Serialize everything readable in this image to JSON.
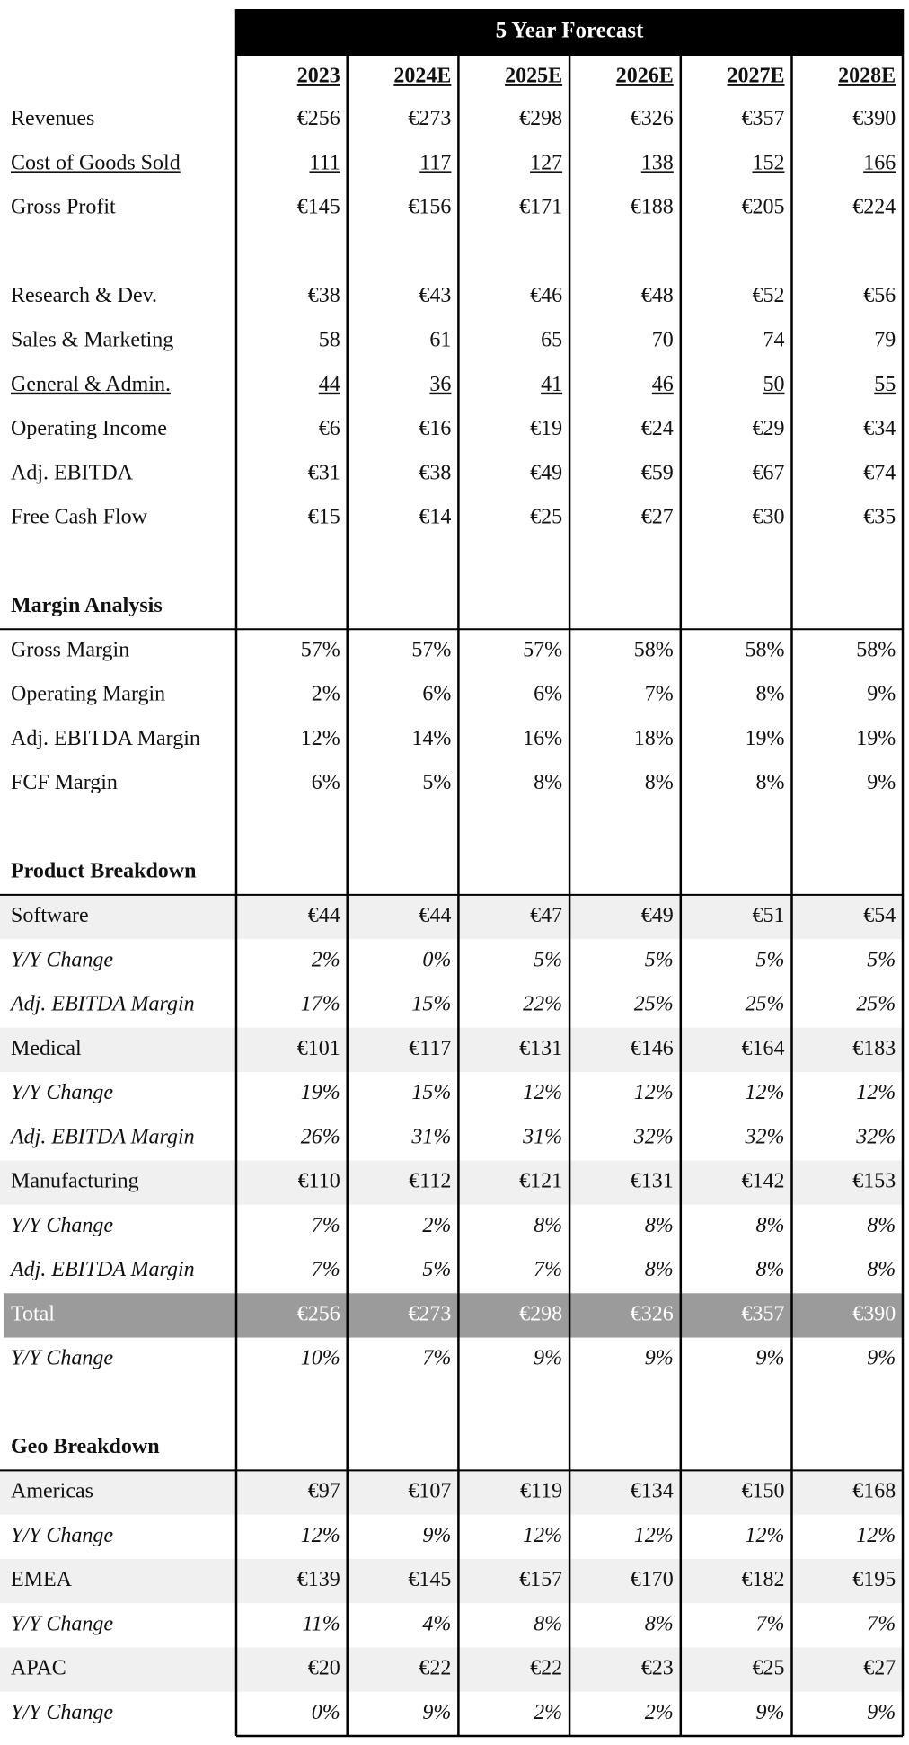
{
  "header": {
    "title": "5 Year Forecast",
    "columns": [
      "2023",
      "2024E",
      "2025E",
      "2026E",
      "2027E",
      "2028E"
    ]
  },
  "sections": [
    {
      "rows": [
        {
          "label": "Revenues",
          "values": [
            "€256",
            "€273",
            "€298",
            "€326",
            "€357",
            "€390"
          ]
        },
        {
          "label": "Cost of Goods Sold",
          "values": [
            "111",
            "117",
            "127",
            "138",
            "152",
            "166"
          ]
        },
        {
          "label": "Gross Profit",
          "values": [
            "€145",
            "€156",
            "€171",
            "€188",
            "€205",
            "€224"
          ]
        }
      ]
    },
    {
      "rows": [
        {
          "label": "Research & Dev.",
          "values": [
            "€38",
            "€43",
            "€46",
            "€48",
            "€52",
            "€56"
          ]
        },
        {
          "label": "Sales & Marketing",
          "values": [
            "58",
            "61",
            "65",
            "70",
            "74",
            "79"
          ]
        },
        {
          "label": "General & Admin.",
          "values": [
            "44",
            "36",
            "41",
            "46",
            "50",
            "55"
          ]
        },
        {
          "label": "Operating Income",
          "values": [
            "€6",
            "€16",
            "€19",
            "€24",
            "€29",
            "€34"
          ]
        },
        {
          "label": "Adj. EBITDA",
          "values": [
            "€31",
            "€38",
            "€49",
            "€59",
            "€67",
            "€74"
          ]
        },
        {
          "label": "Free Cash Flow",
          "values": [
            "€15",
            "€14",
            "€25",
            "€27",
            "€30",
            "€35"
          ]
        }
      ]
    },
    {
      "title": "Margin Analysis",
      "rows": [
        {
          "label": "Gross Margin",
          "values": [
            "57%",
            "57%",
            "57%",
            "58%",
            "58%",
            "58%"
          ]
        },
        {
          "label": "Operating Margin",
          "values": [
            "2%",
            "6%",
            "6%",
            "7%",
            "8%",
            "9%"
          ]
        },
        {
          "label": "Adj. EBITDA Margin",
          "values": [
            "12%",
            "14%",
            "16%",
            "18%",
            "19%",
            "19%"
          ]
        },
        {
          "label": "FCF Margin",
          "values": [
            "6%",
            "5%",
            "8%",
            "8%",
            "8%",
            "9%"
          ]
        }
      ]
    },
    {
      "title": "Product Breakdown",
      "rows": [
        {
          "label": "Software",
          "values": [
            "€44",
            "€44",
            "€47",
            "€49",
            "€51",
            "€54"
          ]
        },
        {
          "label": "Y/Y Change",
          "values": [
            "2%",
            "0%",
            "5%",
            "5%",
            "5%",
            "5%"
          ]
        },
        {
          "label": "Adj. EBITDA Margin",
          "values": [
            "17%",
            "15%",
            "22%",
            "25%",
            "25%",
            "25%"
          ]
        },
        {
          "label": "Medical",
          "values": [
            "€101",
            "€117",
            "€131",
            "€146",
            "€164",
            "€183"
          ]
        },
        {
          "label": "Y/Y Change",
          "values": [
            "19%",
            "15%",
            "12%",
            "12%",
            "12%",
            "12%"
          ]
        },
        {
          "label": "Adj. EBITDA Margin",
          "values": [
            "26%",
            "31%",
            "31%",
            "32%",
            "32%",
            "32%"
          ]
        },
        {
          "label": "Manufacturing",
          "values": [
            "€110",
            "€112",
            "€121",
            "€131",
            "€142",
            "€153"
          ]
        },
        {
          "label": "Y/Y Change",
          "values": [
            "7%",
            "2%",
            "8%",
            "8%",
            "8%",
            "8%"
          ]
        },
        {
          "label": "Adj. EBITDA Margin",
          "values": [
            "7%",
            "5%",
            "7%",
            "8%",
            "8%",
            "8%"
          ]
        },
        {
          "label": "Total",
          "values": [
            "€256",
            "€273",
            "€298",
            "€326",
            "€357",
            "€390"
          ]
        },
        {
          "label": "Y/Y Change",
          "values": [
            "10%",
            "7%",
            "9%",
            "9%",
            "9%",
            "9%"
          ]
        }
      ]
    },
    {
      "title": "Geo Breakdown",
      "rows": [
        {
          "label": "Americas",
          "values": [
            "€97",
            "€107",
            "€119",
            "€134",
            "€150",
            "€168"
          ]
        },
        {
          "label": "Y/Y Change",
          "values": [
            "12%",
            "9%",
            "12%",
            "12%",
            "12%",
            "12%"
          ]
        },
        {
          "label": "EMEA",
          "values": [
            "€139",
            "€145",
            "€157",
            "€170",
            "€182",
            "€195"
          ]
        },
        {
          "label": "Y/Y Change",
          "values": [
            "11%",
            "4%",
            "8%",
            "8%",
            "7%",
            "7%"
          ]
        },
        {
          "label": "APAC",
          "values": [
            "€20",
            "€22",
            "€22",
            "€23",
            "€25",
            "€27"
          ]
        },
        {
          "label": "Y/Y Change",
          "values": [
            "0%",
            "9%",
            "2%",
            "2%",
            "9%",
            "9%"
          ]
        }
      ]
    }
  ]
}
